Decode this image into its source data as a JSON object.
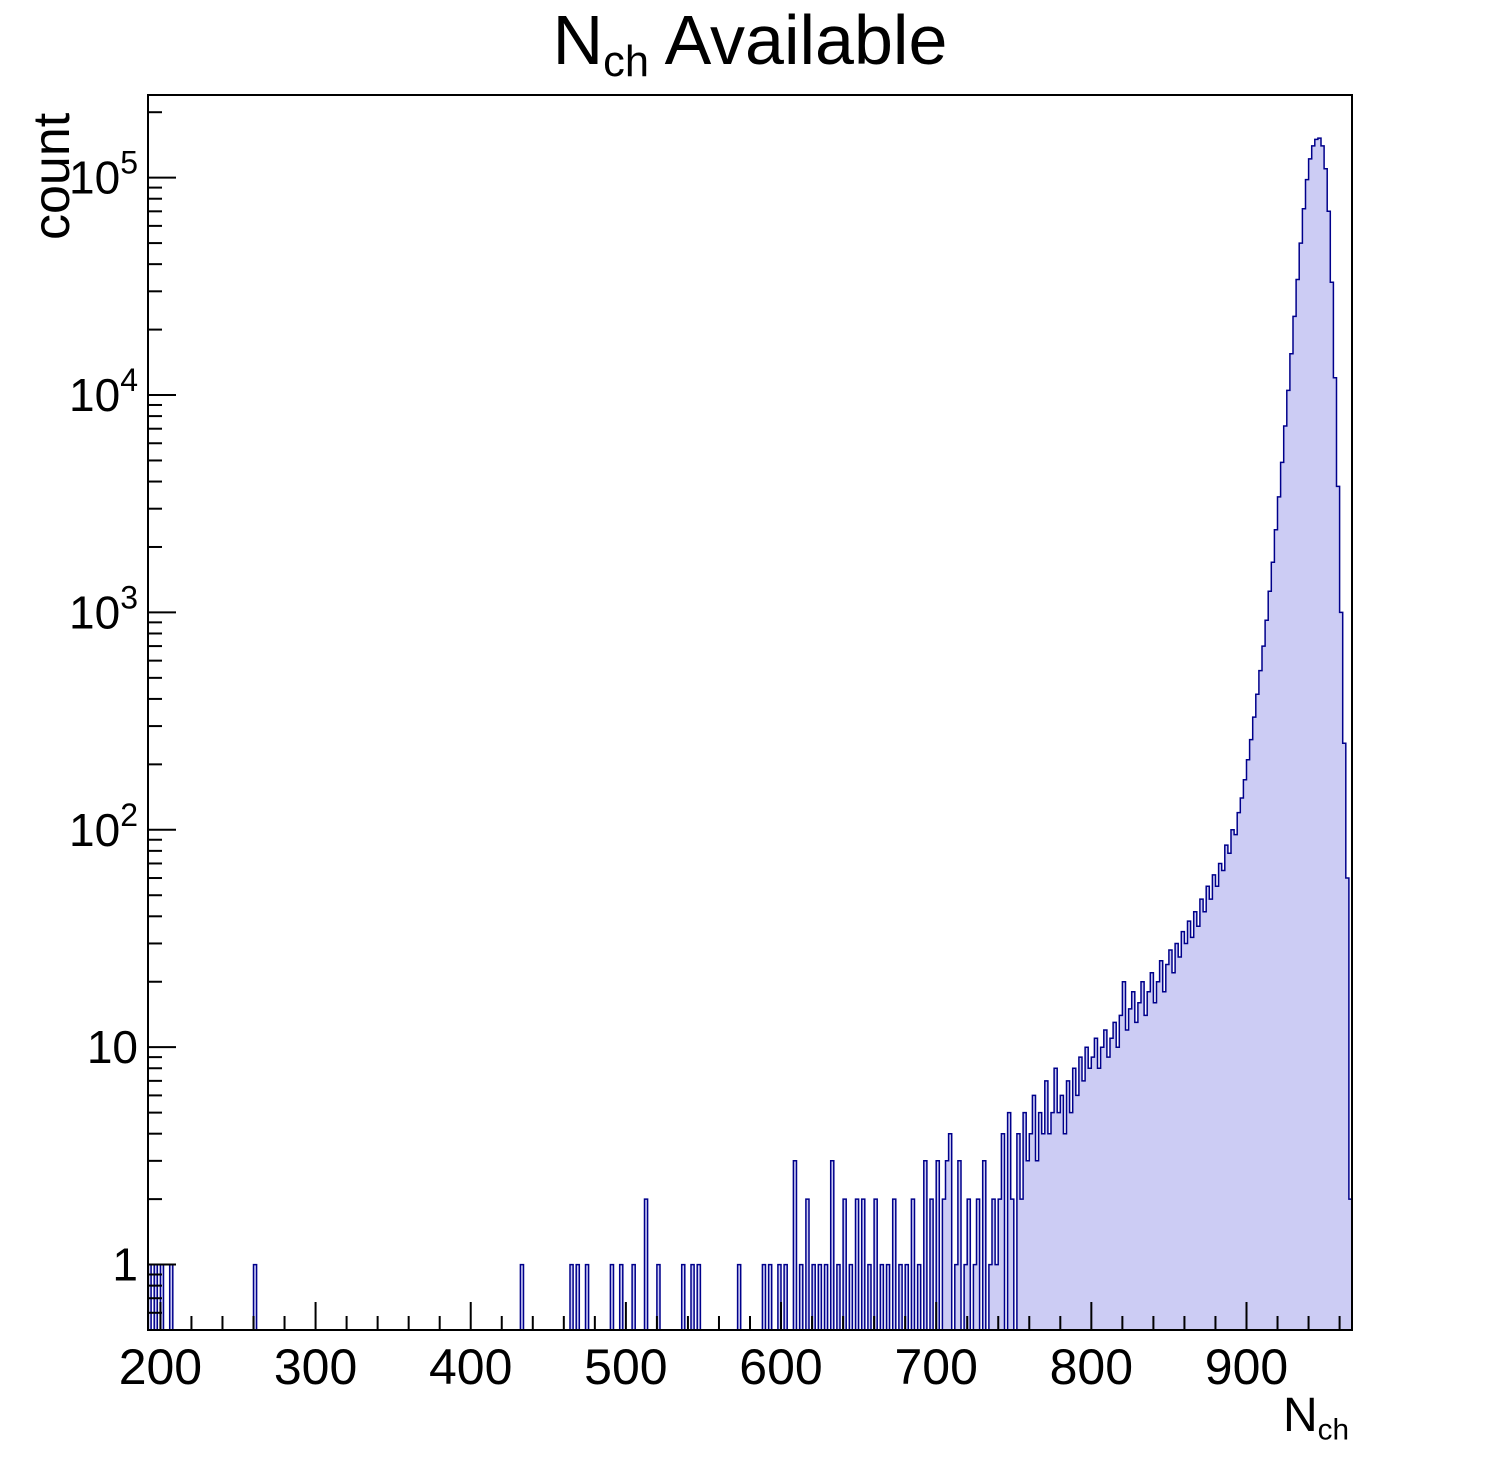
{
  "title": {
    "pre": "N",
    "sub": "ch",
    "post": " Available"
  },
  "y_axis": {
    "label": "count"
  },
  "x_axis": {
    "label_pre": "N",
    "label_sub": "ch"
  },
  "chart_data": {
    "type": "bar",
    "title": "N_ch Available",
    "xlabel": "N_ch",
    "ylabel": "count",
    "y_scale": "log",
    "grid": false,
    "legend": "none",
    "x_range": [
      192,
      968
    ],
    "y_range": [
      0.5,
      240000
    ],
    "bin_width": 2,
    "fill_color": "#ccccf4",
    "line_color": "#00008b",
    "frame_color": "#000000",
    "x_ticks_major": [
      200,
      300,
      400,
      500,
      600,
      700,
      800,
      900
    ],
    "x_tick_labels": [
      "200",
      "300",
      "400",
      "500",
      "600",
      "700",
      "800",
      "900"
    ],
    "x_minor_tick_step": 20,
    "y_ticks_major": [
      {
        "v": 1,
        "b": "1",
        "e": ""
      },
      {
        "v": 10,
        "b": "10",
        "e": ""
      },
      {
        "v": 100,
        "b": "10",
        "e": "2"
      },
      {
        "v": 1000,
        "b": "10",
        "e": "3"
      },
      {
        "v": 10000,
        "b": "10",
        "e": "4"
      },
      {
        "v": 100000,
        "b": "10",
        "e": "5"
      }
    ],
    "bins": [
      [
        192,
        1
      ],
      [
        196,
        1
      ],
      [
        200,
        1
      ],
      [
        206,
        1
      ],
      [
        260,
        1
      ],
      [
        432,
        1
      ],
      [
        464,
        1
      ],
      [
        468,
        1
      ],
      [
        474,
        1
      ],
      [
        490,
        1
      ],
      [
        496,
        1
      ],
      [
        504,
        1
      ],
      [
        512,
        2
      ],
      [
        520,
        1
      ],
      [
        536,
        1
      ],
      [
        542,
        1
      ],
      [
        546,
        1
      ],
      [
        572,
        1
      ],
      [
        588,
        1
      ],
      [
        592,
        1
      ],
      [
        598,
        1
      ],
      [
        602,
        1
      ],
      [
        608,
        3
      ],
      [
        612,
        1
      ],
      [
        616,
        2
      ],
      [
        620,
        1
      ],
      [
        624,
        1
      ],
      [
        628,
        1
      ],
      [
        632,
        3
      ],
      [
        636,
        1
      ],
      [
        640,
        2
      ],
      [
        644,
        1
      ],
      [
        648,
        2
      ],
      [
        652,
        2
      ],
      [
        656,
        1
      ],
      [
        660,
        2
      ],
      [
        664,
        1
      ],
      [
        668,
        1
      ],
      [
        672,
        2
      ],
      [
        676,
        1
      ],
      [
        680,
        1
      ],
      [
        684,
        2
      ],
      [
        688,
        1
      ],
      [
        692,
        3
      ],
      [
        696,
        2
      ],
      [
        700,
        3
      ],
      [
        704,
        2
      ],
      [
        706,
        3
      ],
      [
        708,
        4
      ],
      [
        712,
        1
      ],
      [
        714,
        3
      ],
      [
        718,
        1
      ],
      [
        720,
        2
      ],
      [
        724,
        1
      ],
      [
        726,
        2
      ],
      [
        730,
        3
      ],
      [
        734,
        1
      ],
      [
        736,
        2
      ],
      [
        738,
        1
      ],
      [
        740,
        2
      ],
      [
        742,
        4
      ],
      [
        746,
        5
      ],
      [
        748,
        2
      ],
      [
        752,
        4
      ],
      [
        754,
        2
      ],
      [
        756,
        5
      ],
      [
        758,
        3
      ],
      [
        760,
        4
      ],
      [
        762,
        6
      ],
      [
        764,
        3
      ],
      [
        766,
        5
      ],
      [
        768,
        4
      ],
      [
        770,
        7
      ],
      [
        772,
        4
      ],
      [
        774,
        5
      ],
      [
        776,
        8
      ],
      [
        778,
        5
      ],
      [
        780,
        6
      ],
      [
        782,
        4
      ],
      [
        784,
        7
      ],
      [
        786,
        5
      ],
      [
        788,
        8
      ],
      [
        790,
        6
      ],
      [
        792,
        9
      ],
      [
        794,
        7
      ],
      [
        796,
        10
      ],
      [
        798,
        8
      ],
      [
        800,
        9
      ],
      [
        802,
        11
      ],
      [
        804,
        8
      ],
      [
        806,
        10
      ],
      [
        808,
        12
      ],
      [
        810,
        9
      ],
      [
        812,
        11
      ],
      [
        814,
        13
      ],
      [
        816,
        10
      ],
      [
        818,
        14
      ],
      [
        820,
        20
      ],
      [
        822,
        12
      ],
      [
        824,
        15
      ],
      [
        826,
        18
      ],
      [
        828,
        13
      ],
      [
        830,
        16
      ],
      [
        832,
        20
      ],
      [
        834,
        14
      ],
      [
        836,
        18
      ],
      [
        838,
        22
      ],
      [
        840,
        16
      ],
      [
        842,
        20
      ],
      [
        844,
        25
      ],
      [
        846,
        18
      ],
      [
        848,
        24
      ],
      [
        850,
        28
      ],
      [
        852,
        22
      ],
      [
        854,
        30
      ],
      [
        856,
        26
      ],
      [
        858,
        34
      ],
      [
        860,
        30
      ],
      [
        862,
        38
      ],
      [
        864,
        32
      ],
      [
        866,
        42
      ],
      [
        868,
        36
      ],
      [
        870,
        48
      ],
      [
        872,
        42
      ],
      [
        874,
        55
      ],
      [
        876,
        48
      ],
      [
        878,
        62
      ],
      [
        880,
        55
      ],
      [
        882,
        70
      ],
      [
        884,
        65
      ],
      [
        886,
        85
      ],
      [
        888,
        78
      ],
      [
        890,
        100
      ],
      [
        892,
        95
      ],
      [
        894,
        120
      ],
      [
        896,
        140
      ],
      [
        898,
        170
      ],
      [
        900,
        210
      ],
      [
        902,
        260
      ],
      [
        904,
        330
      ],
      [
        906,
        420
      ],
      [
        908,
        540
      ],
      [
        910,
        700
      ],
      [
        912,
        920
      ],
      [
        914,
        1250
      ],
      [
        916,
        1700
      ],
      [
        918,
        2400
      ],
      [
        920,
        3400
      ],
      [
        922,
        4900
      ],
      [
        924,
        7200
      ],
      [
        926,
        10500
      ],
      [
        928,
        15500
      ],
      [
        930,
        23000
      ],
      [
        932,
        34000
      ],
      [
        934,
        50000
      ],
      [
        936,
        72000
      ],
      [
        938,
        98000
      ],
      [
        940,
        122000
      ],
      [
        942,
        140000
      ],
      [
        944,
        150000
      ],
      [
        946,
        152000
      ],
      [
        948,
        140000
      ],
      [
        950,
        110000
      ],
      [
        952,
        70000
      ],
      [
        954,
        33000
      ],
      [
        956,
        12000
      ],
      [
        958,
        3800
      ],
      [
        960,
        1000
      ],
      [
        962,
        250
      ],
      [
        964,
        60
      ],
      [
        966,
        2
      ]
    ]
  }
}
